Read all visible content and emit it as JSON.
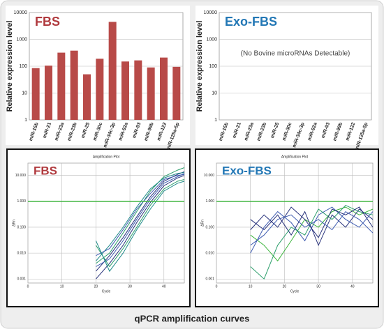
{
  "caption": "qPCR amplification curves",
  "chart_data": [
    {
      "type": "bar",
      "title": "FBS",
      "title_color": "#b03a3e",
      "ylabel": "Relative expression level",
      "categories": [
        "miR-15b",
        "miR-21",
        "miR-23a",
        "miR-23b",
        "miR-25",
        "miR-30c",
        "miR-34c-3p",
        "miR-92a",
        "miR-93",
        "miR-99b",
        "miR-122",
        "miR-125a-5p"
      ],
      "values": [
        85,
        105,
        320,
        380,
        50,
        190,
        4500,
        150,
        165,
        90,
        210,
        95
      ],
      "color": "#b84a48",
      "ylim": [
        1,
        10000
      ],
      "yticks": [
        1,
        10,
        100,
        1000,
        10000
      ],
      "log_scale": true,
      "grid": true
    },
    {
      "type": "bar",
      "title": "Exo-FBS",
      "title_color": "#2277b5",
      "ylabel": "Relative expression level",
      "annotation": "(No Bovine microRNAs Detectable)",
      "categories": [
        "miR-15b",
        "miR-21",
        "miR-23a",
        "miR-23b",
        "miR-25",
        "miR-30c",
        "miR-34c-3p",
        "miR-92a",
        "miR-93",
        "miR-99b",
        "miR-122",
        "miR-125a-5p"
      ],
      "color": "#b84a48",
      "ylim": [
        1,
        10000
      ],
      "yticks": [
        1,
        10,
        100,
        1000,
        10000
      ],
      "log_scale": true,
      "grid": true
    },
    {
      "type": "line",
      "title": "FBS",
      "title_color": "#b03a3e",
      "subtitle": "Amplification Plot",
      "xlabel": "Cycle",
      "ylabel": "ΔRn",
      "x": [
        20,
        24,
        28,
        32,
        36,
        40,
        44,
        46
      ],
      "series": [
        {
          "color": "#2a9d6a",
          "values": [
            0.004,
            0.01,
            0.06,
            0.4,
            2.5,
            9,
            16,
            20
          ]
        },
        {
          "color": "#26307a",
          "values": [
            0.002,
            0.008,
            0.04,
            0.25,
            1.5,
            6,
            11,
            14
          ]
        },
        {
          "color": "#3d5bb0",
          "values": [
            0.003,
            0.006,
            0.03,
            0.2,
            1.2,
            5,
            9,
            12
          ]
        },
        {
          "color": "#1f8a8a",
          "values": [
            0.005,
            0.02,
            0.1,
            0.6,
            3,
            8,
            12,
            13
          ]
        },
        {
          "color": "#26307a",
          "values": [
            0.001,
            0.004,
            0.02,
            0.15,
            0.9,
            4,
            8,
            10
          ]
        },
        {
          "color": "#2a9d6a",
          "values": [
            0.02,
            0.003,
            0.015,
            0.1,
            0.7,
            3,
            6,
            7
          ]
        },
        {
          "color": "#3d5bb0",
          "values": [
            0.008,
            0.015,
            0.08,
            0.5,
            2,
            7,
            10,
            11
          ]
        },
        {
          "color": "#1f8a8a",
          "values": [
            0.03,
            0.002,
            0.01,
            0.08,
            0.5,
            2.5,
            5,
            6
          ]
        }
      ],
      "xlim": [
        0,
        46
      ],
      "xticks": [
        0,
        10,
        20,
        30,
        40
      ],
      "ylim": [
        0.0007,
        30
      ],
      "yticks": [
        {
          "value": 10,
          "label": "10.000"
        },
        {
          "value": 1,
          "label": "1.000"
        },
        {
          "value": 0.1,
          "label": "0.100"
        },
        {
          "value": 0.01,
          "label": "0.010"
        },
        {
          "value": 0.001,
          "label": "0.001"
        }
      ],
      "log_scale": true,
      "grid": true,
      "threshold": 1,
      "threshold_color": "#3db53d"
    },
    {
      "type": "line",
      "title": "Exo-FBS",
      "title_color": "#2277b5",
      "subtitle": "Amplification Plot",
      "xlabel": "Cycle",
      "ylabel": "ΔRn",
      "x": [
        10,
        14,
        18,
        22,
        26,
        30,
        34,
        38,
        42,
        46
      ],
      "series": [
        {
          "color": "#3db53d",
          "values": [
            0.05,
            0.02,
            0.005,
            0.03,
            0.2,
            0.1,
            0.4,
            0.6,
            0.3,
            0.5
          ]
        },
        {
          "color": "#26307a",
          "values": [
            0.2,
            0.08,
            0.3,
            0.05,
            0.4,
            0.02,
            0.3,
            0.1,
            0.5,
            0.2
          ]
        },
        {
          "color": "#3d5bb0",
          "values": [
            0.01,
            0.1,
            0.4,
            0.15,
            0.03,
            0.3,
            0.6,
            0.2,
            0.1,
            0.4
          ]
        },
        {
          "color": "#2a9d6a",
          "values": [
            0.003,
            0.001,
            0.02,
            0.1,
            0.05,
            0.5,
            0.2,
            0.7,
            0.4,
            0.3
          ]
        },
        {
          "color": "#26307a",
          "values": [
            0.08,
            0.3,
            0.1,
            0.6,
            0.2,
            0.04,
            0.5,
            0.3,
            0.6,
            0.1
          ]
        },
        {
          "color": "#3d5bb0",
          "values": [
            0.02,
            0.05,
            0.2,
            0.3,
            0.1,
            0.2,
            0.08,
            0.4,
            0.2,
            0.06
          ]
        }
      ],
      "xlim": [
        0,
        46
      ],
      "xticks": [
        0,
        10,
        20,
        30,
        40
      ],
      "ylim": [
        0.0007,
        30
      ],
      "yticks": [
        {
          "value": 10,
          "label": "10.000"
        },
        {
          "value": 1,
          "label": "1.000"
        },
        {
          "value": 0.1,
          "label": "0.100"
        },
        {
          "value": 0.01,
          "label": "0.010"
        },
        {
          "value": 0.001,
          "label": "0.001"
        }
      ],
      "log_scale": true,
      "grid": true,
      "threshold": 1,
      "threshold_color": "#3db53d"
    }
  ]
}
